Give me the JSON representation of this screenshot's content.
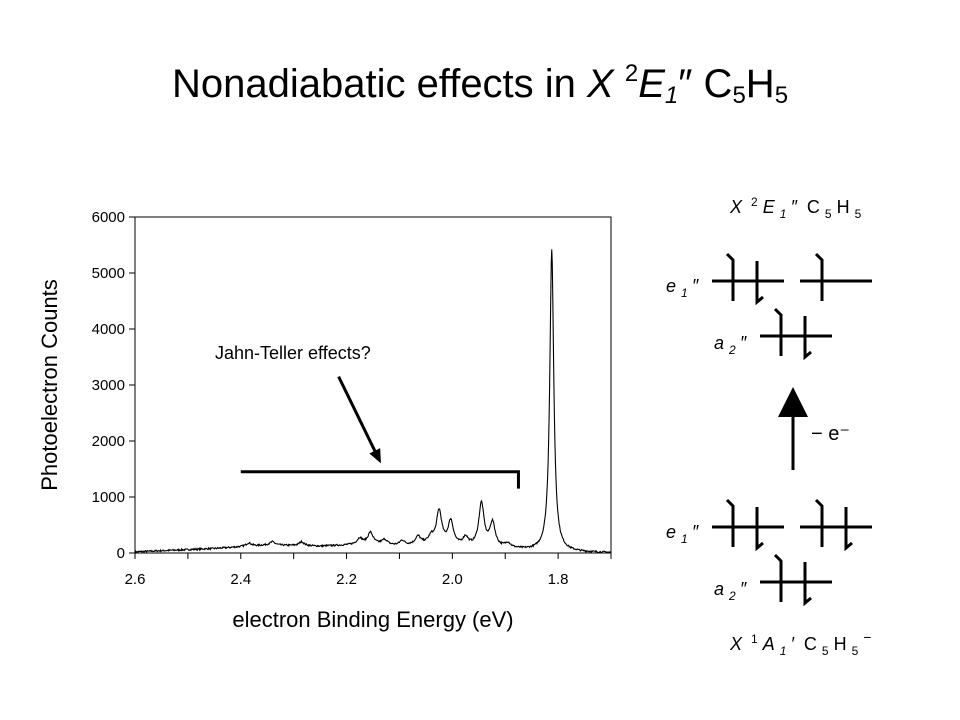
{
  "slide": {
    "title_text": "Nonadiabatic effects in ",
    "title_X": "X",
    "title_sup": "2",
    "title_E": "E",
    "title_E_sub": "1",
    "title_prime": "″",
    "title_C": "C",
    "title_C_sub": "5",
    "title_H": "H",
    "title_H_sub": "5"
  },
  "chart_data": {
    "type": "line",
    "xlabel": "electron Binding Energy (eV)",
    "ylabel": "Photoelectron Counts",
    "xlim": [
      2.6,
      1.7
    ],
    "ylim": [
      0,
      6000
    ],
    "x_reversed": true,
    "x_ticks": [
      "2.6",
      "2.4",
      "2.2",
      "2.0",
      "1.8"
    ],
    "y_ticks": [
      "0",
      "1000",
      "2000",
      "3000",
      "4000",
      "5000",
      "6000"
    ],
    "x_tick_values": [
      2.6,
      2.4,
      2.2,
      2.0,
      1.8
    ],
    "y_tick_values": [
      0,
      1000,
      2000,
      3000,
      4000,
      5000,
      6000
    ],
    "baseline": [
      [
        2.6,
        20
      ],
      [
        2.55,
        40
      ],
      [
        2.5,
        60
      ],
      [
        2.45,
        80
      ],
      [
        2.4,
        110
      ],
      [
        2.35,
        140
      ],
      [
        2.3,
        130
      ],
      [
        2.25,
        120
      ],
      [
        2.2,
        140
      ],
      [
        2.15,
        160
      ],
      [
        2.1,
        120
      ],
      [
        2.05,
        150
      ],
      [
        2.0,
        120
      ],
      [
        1.95,
        90
      ],
      [
        1.9,
        80
      ],
      [
        1.85,
        40
      ],
      [
        1.8,
        20
      ],
      [
        1.75,
        10
      ],
      [
        1.7,
        5
      ]
    ],
    "peaks": [
      {
        "x": 2.385,
        "height": 60,
        "width": 0.006
      },
      {
        "x": 2.34,
        "height": 60,
        "width": 0.006
      },
      {
        "x": 2.285,
        "height": 70,
        "width": 0.006
      },
      {
        "x": 2.175,
        "height": 110,
        "width": 0.006
      },
      {
        "x": 2.155,
        "height": 200,
        "width": 0.006
      },
      {
        "x": 2.128,
        "height": 90,
        "width": 0.006
      },
      {
        "x": 2.095,
        "height": 90,
        "width": 0.006
      },
      {
        "x": 2.065,
        "height": 140,
        "width": 0.006
      },
      {
        "x": 2.04,
        "height": 120,
        "width": 0.006
      },
      {
        "x": 2.025,
        "height": 600,
        "width": 0.006
      },
      {
        "x": 2.003,
        "height": 430,
        "width": 0.006
      },
      {
        "x": 1.975,
        "height": 150,
        "width": 0.006
      },
      {
        "x": 1.945,
        "height": 780,
        "width": 0.006
      },
      {
        "x": 1.924,
        "height": 430,
        "width": 0.006
      },
      {
        "x": 1.895,
        "height": 80,
        "width": 0.006
      },
      {
        "x": 1.812,
        "height": 5380,
        "width": 0.0045
      }
    ],
    "annotation": {
      "text": "Jahn-Teller effects?",
      "bracket_x": [
        2.4,
        1.875
      ],
      "bracket_y": 1450,
      "bracket_tick_y": 1150,
      "arrow_from_x": 2.215,
      "arrow_from_y": 3150,
      "arrow_to_x": 2.135,
      "arrow_to_y": 1600
    }
  },
  "diagram": {
    "top_label": {
      "X": "X",
      "sup": "2",
      "E": "E",
      "sub": "1",
      "prime": "″",
      "rest_C": "C",
      "c_sub": "5",
      "H": "H",
      "h_sub": "5"
    },
    "bottom_label": {
      "X": "X",
      "sup": "1",
      "A": "A",
      "sub": "1",
      "prime": "′",
      "rest_C": "C",
      "c_sub": "5",
      "H": "H",
      "h_sub": "5",
      "minus": "−"
    },
    "e1": {
      "letter": "e",
      "sub": "1",
      "prime": "″"
    },
    "a2": {
      "letter": "a",
      "sub": "2",
      "prime": "″"
    },
    "arrow_label": "− e⁻"
  }
}
